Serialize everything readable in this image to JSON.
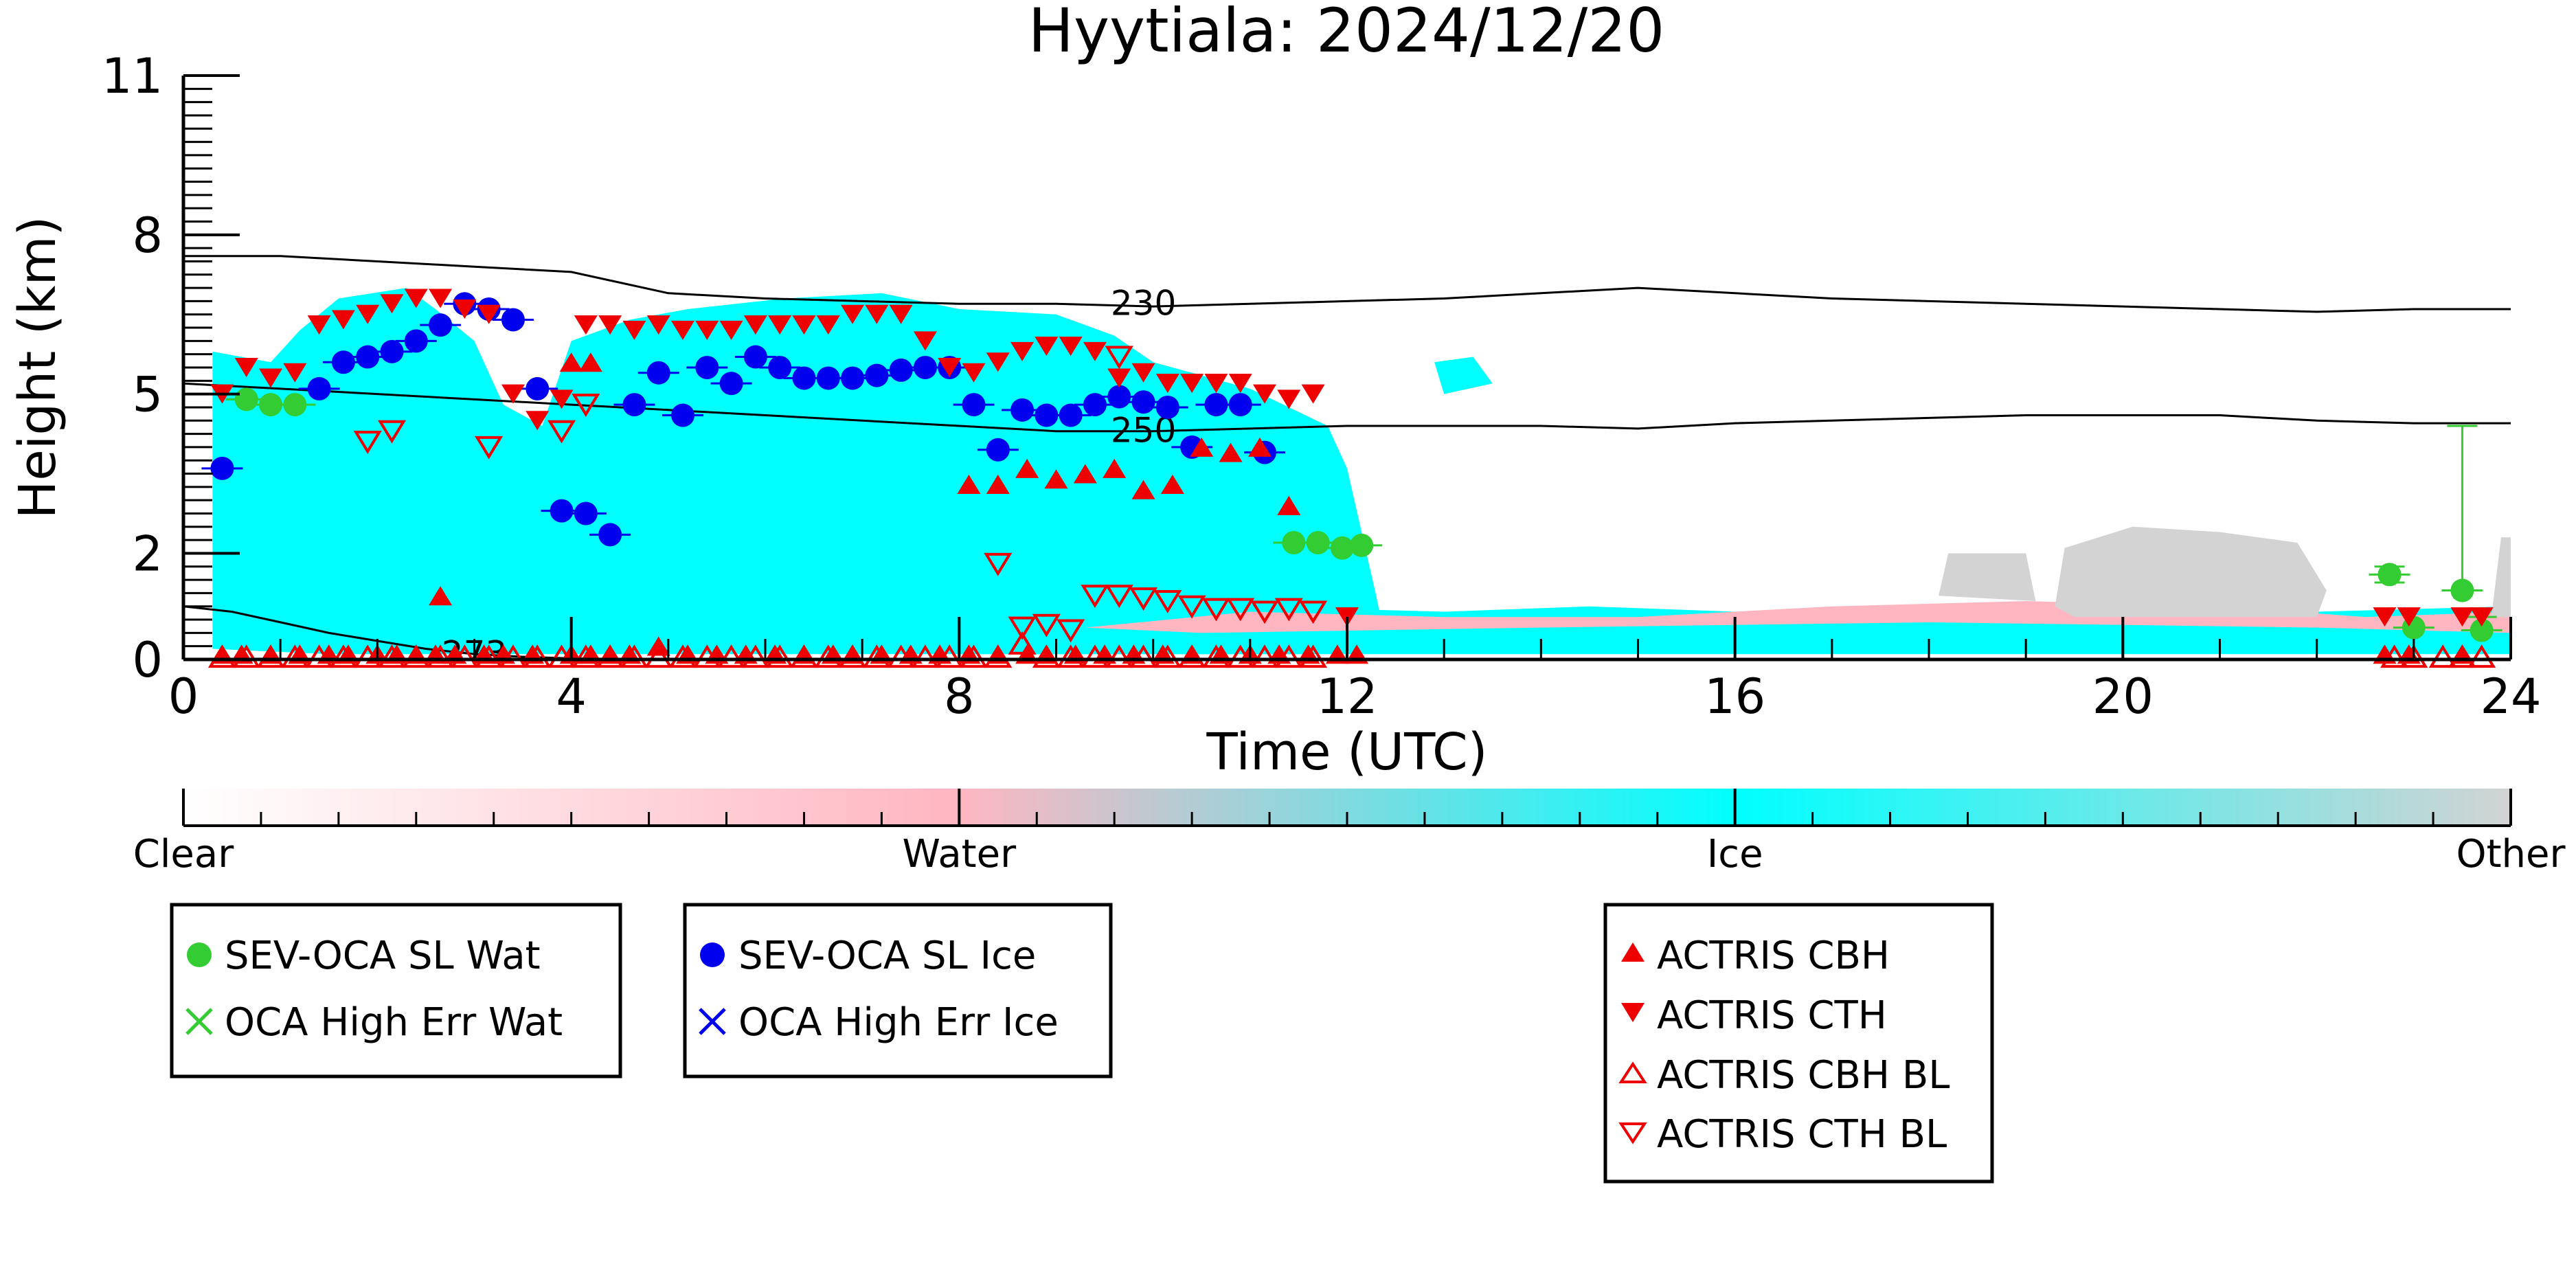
{
  "chart_data": {
    "type": "scatter",
    "title": "Hyytiala: 2024/12/20",
    "xlabel": "Time (UTC)",
    "ylabel": "Height (km)",
    "xlim": [
      0,
      24
    ],
    "ylim": [
      0,
      11
    ],
    "x_ticks": [
      0,
      4,
      8,
      12,
      16,
      20,
      24
    ],
    "x_tick_labels": [
      "0",
      "4",
      "8",
      "12",
      "16",
      "20",
      "24"
    ],
    "y_ticks": [
      0,
      2,
      5,
      8,
      11
    ],
    "y_tick_labels": [
      "0",
      "2",
      "5",
      "8",
      "11"
    ],
    "colorbar": {
      "labels": [
        "Clear",
        "Water",
        "Ice",
        "Other"
      ],
      "colors": [
        "#ffffff",
        "#ffb6c1",
        "#00ffff",
        "#d3d3d3"
      ]
    },
    "background_mask": [
      {
        "class": "Ice",
        "color": "#00ffff",
        "regions": [
          [
            [
              0.3,
              0.2
            ],
            [
              0.3,
              5.8
            ],
            [
              0.9,
              5.6
            ],
            [
              1.2,
              6.2
            ],
            [
              1.6,
              6.8
            ],
            [
              2.3,
              7.0
            ],
            [
              2.6,
              6.6
            ],
            [
              3.0,
              6.0
            ],
            [
              3.3,
              4.8
            ],
            [
              3.7,
              4.4
            ],
            [
              4.0,
              6.0
            ],
            [
              4.6,
              6.4
            ],
            [
              5.2,
              6.6
            ],
            [
              6.2,
              6.8
            ],
            [
              7.2,
              6.9
            ],
            [
              8.0,
              6.6
            ],
            [
              9.0,
              6.5
            ],
            [
              9.6,
              6.1
            ],
            [
              10.0,
              5.6
            ],
            [
              11.0,
              5.1
            ],
            [
              11.8,
              4.4
            ],
            [
              12.0,
              3.6
            ],
            [
              12.3,
              1.2
            ],
            [
              12.4,
              0.3
            ],
            [
              11.6,
              0.1
            ],
            [
              10.0,
              0.1
            ],
            [
              8.2,
              0.1
            ],
            [
              6.0,
              0.1
            ],
            [
              3.8,
              0.1
            ],
            [
              1.5,
              0.1
            ]
          ],
          [
            [
              8.0,
              0.1
            ],
            [
              8.0,
              0.9
            ],
            [
              9.5,
              1.2
            ],
            [
              11.0,
              1.0
            ],
            [
              13.0,
              0.9
            ],
            [
              14.5,
              1.0
            ],
            [
              16.0,
              0.9
            ],
            [
              18.0,
              1.0
            ],
            [
              20.0,
              1.1
            ],
            [
              22.0,
              0.9
            ],
            [
              24.0,
              1.0
            ],
            [
              24.0,
              0.1
            ],
            [
              16.0,
              0.1
            ]
          ],
          [
            [
              12.9,
              5.6
            ],
            [
              13.3,
              5.7
            ],
            [
              13.5,
              5.2
            ],
            [
              13.0,
              5.0
            ]
          ]
        ]
      },
      {
        "class": "Water",
        "color": "#ffb6c1",
        "regions": [
          [
            [
              9.3,
              0.6
            ],
            [
              11.0,
              0.9
            ],
            [
              13.0,
              0.8
            ],
            [
              15.0,
              0.8
            ],
            [
              17.0,
              1.0
            ],
            [
              19.0,
              1.1
            ],
            [
              21.0,
              1.0
            ],
            [
              22.5,
              0.8
            ],
            [
              24.0,
              0.9
            ],
            [
              24.0,
              0.5
            ],
            [
              22.0,
              0.6
            ],
            [
              18.0,
              0.7
            ],
            [
              14.0,
              0.6
            ],
            [
              10.5,
              0.5
            ]
          ]
        ]
      },
      {
        "class": "Other",
        "color": "#d3d3d3",
        "regions": [
          [
            [
              18.1,
              1.2
            ],
            [
              18.2,
              2.0
            ],
            [
              19.0,
              2.0
            ],
            [
              19.1,
              1.1
            ]
          ],
          [
            [
              19.3,
              1.0
            ],
            [
              19.4,
              2.1
            ],
            [
              20.1,
              2.5
            ],
            [
              21.0,
              2.4
            ],
            [
              21.8,
              2.2
            ],
            [
              22.1,
              1.3
            ],
            [
              22.0,
              0.8
            ],
            [
              19.5,
              0.8
            ]
          ],
          [
            [
              23.8,
              0.8
            ],
            [
              23.9,
              2.3
            ],
            [
              24.0,
              2.3
            ],
            [
              24.0,
              0.8
            ]
          ]
        ]
      }
    ],
    "contours": [
      {
        "label": "230",
        "label_x": 9.9,
        "label_y": 6.7,
        "x": [
          0,
          1,
          2,
          3,
          4,
          5,
          6,
          7,
          8,
          9,
          10,
          11,
          12,
          13,
          14,
          15,
          16,
          17,
          18,
          19,
          20,
          21,
          22,
          23,
          24
        ],
        "y": [
          7.6,
          7.6,
          7.5,
          7.4,
          7.3,
          6.9,
          6.8,
          6.75,
          6.7,
          6.7,
          6.65,
          6.7,
          6.75,
          6.8,
          6.9,
          7.0,
          6.9,
          6.8,
          6.75,
          6.7,
          6.65,
          6.6,
          6.55,
          6.6,
          6.6
        ]
      },
      {
        "label": "250",
        "label_x": 9.9,
        "label_y": 4.3,
        "x": [
          0,
          1,
          2,
          3,
          4,
          5,
          6,
          7,
          8,
          9,
          10,
          11,
          12,
          13,
          14,
          15,
          16,
          17,
          18,
          19,
          20,
          21,
          22,
          23,
          24
        ],
        "y": [
          5.2,
          5.1,
          5.0,
          4.9,
          4.8,
          4.7,
          4.6,
          4.5,
          4.4,
          4.3,
          4.3,
          4.35,
          4.4,
          4.4,
          4.4,
          4.35,
          4.45,
          4.5,
          4.55,
          4.6,
          4.6,
          4.6,
          4.5,
          4.45,
          4.45
        ]
      },
      {
        "label": "273",
        "label_x": 3.0,
        "label_y": 0.1,
        "x": [
          0,
          0.5,
          1,
          1.5,
          2,
          2.5,
          3,
          3.5,
          4,
          4.5,
          5,
          5.5
        ],
        "y": [
          1.0,
          0.9,
          0.7,
          0.5,
          0.35,
          0.2,
          0.1,
          0.05,
          0.02,
          0.01,
          0.0,
          0.0
        ]
      }
    ],
    "series": [
      {
        "name": "SEV-OCA SL Wat",
        "marker": "circle",
        "color": "#33cc33",
        "x": [
          0.65,
          0.9,
          1.15,
          11.45,
          11.7,
          11.95,
          12.15,
          22.75,
          23.0,
          23.5,
          23.7
        ],
        "y": [
          4.9,
          4.8,
          4.8,
          2.2,
          2.2,
          2.1,
          2.15,
          1.6,
          0.6,
          1.3,
          0.55
        ],
        "yerr_low": [
          0,
          0,
          0,
          0,
          0,
          0,
          0,
          0.15,
          0,
          0,
          0
        ],
        "yerr_high": [
          0,
          0,
          0,
          0,
          0,
          0,
          0,
          0.15,
          0,
          3.1,
          0.25
        ]
      },
      {
        "name": "OCA High Err Wat",
        "marker": "x",
        "color": "#33cc33",
        "x": [],
        "y": []
      },
      {
        "name": "SEV-OCA SL Ice",
        "marker": "circle",
        "color": "#0000ee",
        "x": [
          0.4,
          1.4,
          1.65,
          1.9,
          2.15,
          2.4,
          2.65,
          2.9,
          3.15,
          3.4,
          3.65,
          3.9,
          4.15,
          4.4,
          4.65,
          4.9,
          5.15,
          5.4,
          5.65,
          5.9,
          6.15,
          6.4,
          6.65,
          6.9,
          7.15,
          7.4,
          7.65,
          7.9,
          8.15,
          8.4,
          8.65,
          8.9,
          9.15,
          9.4,
          9.65,
          9.9,
          10.15,
          10.4,
          10.65,
          10.9,
          11.15
        ],
        "y": [
          3.6,
          5.1,
          5.6,
          5.7,
          5.8,
          6.0,
          6.3,
          6.7,
          6.6,
          6.4,
          5.1,
          2.8,
          2.75,
          2.35,
          4.8,
          5.4,
          4.6,
          5.5,
          5.2,
          5.7,
          5.5,
          5.3,
          5.3,
          5.3,
          5.35,
          5.45,
          5.5,
          5.5,
          4.8,
          3.95,
          4.7,
          4.6,
          4.6,
          4.8,
          4.95,
          4.85,
          4.75,
          4.0,
          4.8,
          4.8,
          3.9
        ],
        "yerr_low": [
          0,
          0,
          0,
          0,
          0,
          0,
          0,
          0,
          0,
          0,
          0,
          0,
          0,
          0,
          0,
          0,
          0,
          0,
          0,
          0,
          0,
          0,
          0,
          0,
          0,
          0,
          0,
          0,
          0,
          0,
          0,
          0,
          0,
          0,
          0,
          0,
          0,
          0,
          0,
          0,
          0
        ],
        "yerr_high": [
          0,
          0,
          0,
          0,
          0,
          0,
          0,
          0,
          0,
          0,
          0,
          0,
          0,
          0,
          0,
          0,
          0,
          0,
          0,
          0,
          0,
          0,
          0,
          0,
          0,
          0,
          0,
          0,
          0,
          0,
          0,
          0,
          0,
          0,
          0,
          0,
          0,
          0,
          0,
          0,
          0
        ]
      },
      {
        "name": "OCA High Err Ice",
        "marker": "x",
        "color": "#0000ee",
        "x": [],
        "y": []
      },
      {
        "name": "ACTRIS CBH",
        "marker": "triangle-up",
        "color": "#ee0000",
        "filled": true,
        "x": [
          0.4,
          0.6,
          0.9,
          1.2,
          1.5,
          1.7,
          2.0,
          2.2,
          2.4,
          2.6,
          2.8,
          3.1,
          3.3,
          3.6,
          4.0,
          4.2,
          4.4,
          4.6,
          4.9,
          5.2,
          5.5,
          5.8,
          6.1,
          6.4,
          6.7,
          6.9,
          7.2,
          7.5,
          7.8,
          8.1,
          8.4,
          8.7,
          8.9,
          9.2,
          9.5,
          9.8,
          10.1,
          10.4,
          10.7,
          11.0,
          11.3,
          11.6,
          11.9,
          12.1,
          2.65,
          4.0,
          4.2,
          8.1,
          8.4,
          8.7,
          9.0,
          9.3,
          9.6,
          9.9,
          10.2,
          10.5,
          10.8,
          11.1,
          11.4,
          22.7,
          22.95,
          23.5
        ],
        "y": [
          0.1,
          0.1,
          0.1,
          0.1,
          0.1,
          0.1,
          0.1,
          0.1,
          0.1,
          0.1,
          0.1,
          0.1,
          0.1,
          0.1,
          0.1,
          0.1,
          0.1,
          0.1,
          0.25,
          0.1,
          0.1,
          0.1,
          0.1,
          0.1,
          0.1,
          0.1,
          0.1,
          0.1,
          0.1,
          0.1,
          0.1,
          0.1,
          0.1,
          0.1,
          0.1,
          0.1,
          0.1,
          0.1,
          0.1,
          0.1,
          0.1,
          0.1,
          0.1,
          0.1,
          1.2,
          5.6,
          5.6,
          3.3,
          3.3,
          3.6,
          3.4,
          3.5,
          3.6,
          3.2,
          3.3,
          4.0,
          3.9,
          4.0,
          2.9,
          0.1,
          0.1,
          0.1
        ]
      },
      {
        "name": "ACTRIS CTH",
        "marker": "triangle-down",
        "color": "#ee0000",
        "filled": true,
        "x": [
          0.4,
          0.65,
          0.9,
          1.15,
          1.4,
          1.65,
          1.9,
          2.15,
          2.4,
          2.65,
          2.9,
          3.15,
          3.4,
          3.65,
          3.9,
          4.15,
          4.4,
          4.65,
          4.9,
          5.15,
          5.4,
          5.65,
          5.9,
          6.15,
          6.4,
          6.65,
          6.9,
          7.15,
          7.4,
          7.65,
          7.9,
          8.15,
          8.4,
          8.65,
          8.9,
          9.15,
          9.4,
          9.65,
          9.9,
          10.15,
          10.4,
          10.65,
          10.9,
          11.15,
          11.4,
          11.65,
          12.0,
          22.7,
          22.95,
          23.5,
          23.7
        ],
        "y": [
          5.0,
          5.5,
          5.3,
          5.4,
          6.3,
          6.4,
          6.5,
          6.7,
          6.8,
          6.8,
          6.6,
          6.5,
          5.0,
          4.5,
          4.9,
          6.3,
          6.3,
          6.2,
          6.3,
          6.2,
          6.2,
          6.2,
          6.3,
          6.3,
          6.3,
          6.3,
          6.5,
          6.5,
          6.5,
          6.0,
          5.5,
          5.4,
          5.6,
          5.8,
          5.9,
          5.9,
          5.8,
          5.3,
          5.4,
          5.2,
          5.2,
          5.2,
          5.2,
          5.0,
          4.9,
          5.0,
          0.8,
          0.8,
          0.8,
          0.8,
          0.8
        ]
      },
      {
        "name": "ACTRIS CBH BL",
        "marker": "triangle-up",
        "color": "#ee0000",
        "filled": false,
        "x": [
          0.4,
          0.65,
          0.9,
          1.15,
          1.4,
          1.65,
          1.9,
          2.15,
          2.4,
          2.65,
          2.9,
          3.15,
          3.4,
          3.65,
          3.9,
          4.15,
          4.4,
          4.65,
          4.9,
          5.15,
          5.4,
          5.65,
          5.9,
          6.15,
          6.4,
          6.65,
          6.9,
          7.15,
          7.4,
          7.65,
          7.9,
          8.15,
          8.4,
          8.65,
          8.9,
          9.15,
          9.4,
          9.65,
          9.9,
          10.15,
          10.4,
          10.65,
          10.9,
          11.15,
          11.4,
          11.65,
          22.8,
          23.0,
          23.3,
          23.5,
          23.7
        ],
        "y": [
          0.05,
          0.05,
          0.05,
          0.05,
          0.05,
          0.05,
          0.05,
          0.05,
          0.05,
          0.05,
          0.05,
          0.05,
          0.05,
          0.05,
          0.05,
          0.05,
          0.05,
          0.05,
          0.05,
          0.05,
          0.05,
          0.05,
          0.05,
          0.05,
          0.05,
          0.05,
          0.05,
          0.05,
          0.05,
          0.05,
          0.05,
          0.05,
          0.05,
          0.3,
          0.05,
          0.05,
          0.05,
          0.05,
          0.05,
          0.05,
          0.05,
          0.05,
          0.05,
          0.05,
          0.05,
          0.05,
          0.05,
          0.05,
          0.05,
          0.05,
          0.05
        ]
      },
      {
        "name": "ACTRIS CTH BL",
        "marker": "triangle-down",
        "color": "#ee0000",
        "filled": false,
        "x": [
          1.9,
          2.15,
          3.15,
          3.9,
          4.15,
          8.4,
          8.65,
          8.9,
          9.15,
          9.4,
          9.65,
          9.9,
          10.15,
          10.4,
          10.65,
          10.9,
          11.15,
          11.4,
          11.65,
          9.65
        ],
        "y": [
          4.1,
          4.3,
          4.0,
          4.3,
          4.8,
          1.8,
          0.6,
          0.65,
          0.55,
          1.2,
          1.2,
          1.15,
          1.1,
          1.0,
          0.95,
          0.95,
          0.9,
          0.95,
          0.9,
          5.7
        ]
      }
    ]
  }
}
